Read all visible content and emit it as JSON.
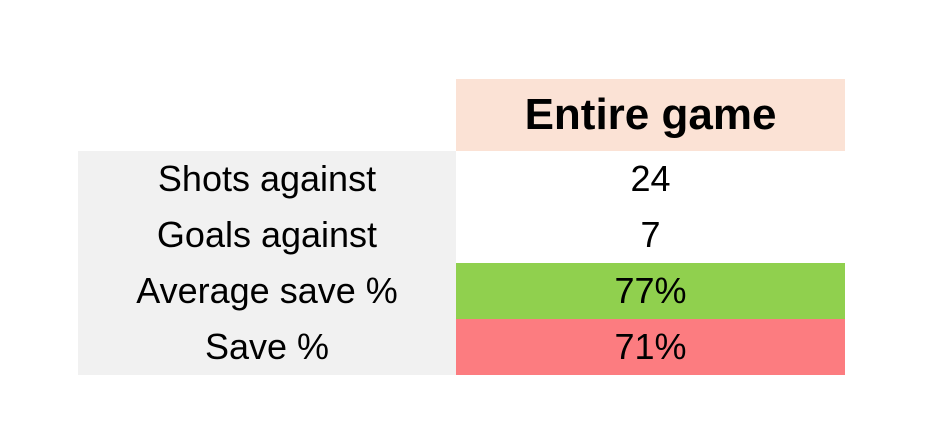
{
  "chart_data": {
    "type": "table",
    "title": "",
    "columns": [
      "",
      "Entire game"
    ],
    "rows": [
      {
        "label": "Shots against",
        "value": "24"
      },
      {
        "label": "Goals against",
        "value": "7"
      },
      {
        "label": "Average save %",
        "value": "77%"
      },
      {
        "label": "Save %",
        "value": "71%"
      }
    ],
    "notes": "Goalkeeper statistics table; Average save % row highlighted green, Save % row highlighted red"
  },
  "table": {
    "header": {
      "label": "Entire game"
    },
    "rows": [
      {
        "label": "Shots against",
        "value": "24"
      },
      {
        "label": "Goals against",
        "value": "7"
      },
      {
        "label": "Average save %",
        "value": "77%"
      },
      {
        "label": "Save %",
        "value": "71%"
      }
    ],
    "colors": {
      "page_bg": "#ffffff",
      "header_bg": "#fbe2d5",
      "label_col_bg": "#f1f1f1",
      "value_row_bg": "#ffffff",
      "good_row_bg": "#90d04e",
      "bad_row_bg": "#fc7c80",
      "text": "#000000"
    }
  }
}
